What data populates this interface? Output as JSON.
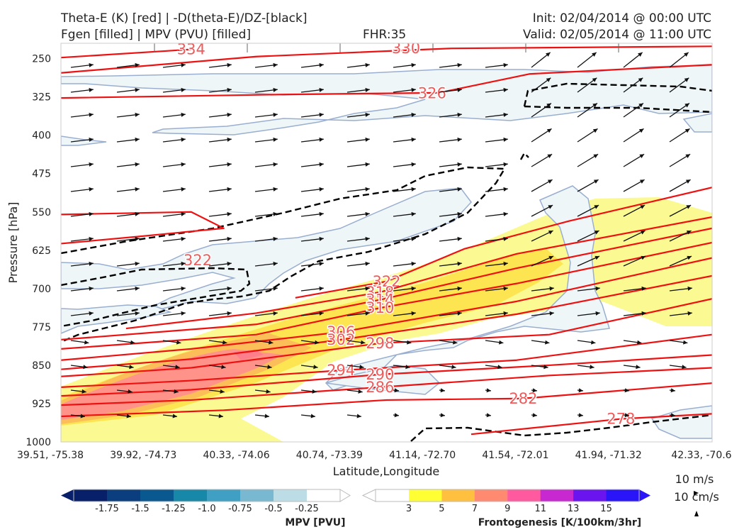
{
  "header": {
    "title_line1": "Theta-E (K) [red] | -D(theta-E)/DZ-[black]",
    "title_line2": "Fgen [filled] | MPV (PVU) [filled]",
    "fhr": "FHR:35",
    "init": "Init: 02/04/2014 @ 00:00 UTC",
    "valid": "Valid: 02/05/2014 @ 11:00 UTC"
  },
  "chart_data": {
    "type": "cross-section",
    "xlabel": "Latitude,Longitude",
    "ylabel": "Pressure [hPa]",
    "x_ticks": [
      "39.51, -75.38",
      "39.92, -74.73",
      "40.33, -74.06",
      "40.74, -73.39",
      "41.14, -72.70",
      "41.54, -72.01",
      "41.94, -71.32",
      "42.33, -70.6"
    ],
    "y_ticks": [
      250,
      325,
      400,
      475,
      550,
      625,
      700,
      775,
      850,
      925,
      1000
    ],
    "ylim": [
      1000,
      220
    ],
    "y_inverted": true,
    "theta_e_color": "#ee1111",
    "theta_e_contours": [
      {
        "value": 334,
        "label": "334",
        "label_at": [
          0.2,
          232
        ],
        "pts": [
          [
            0,
            248
          ],
          [
            0.2,
            232
          ]
        ]
      },
      {
        "value": 330,
        "label": "330",
        "label_at": [
          0.53,
          230
        ],
        "pts": [
          [
            0,
            278
          ],
          [
            0.3,
            246
          ],
          [
            0.6,
            230
          ],
          [
            1,
            226
          ]
        ]
      },
      {
        "value": 326,
        "label": "326",
        "label_at": [
          0.57,
          318
        ],
        "pts": [
          [
            0,
            327
          ],
          [
            0.35,
            320
          ],
          [
            0.58,
            317
          ],
          [
            0.72,
            280
          ],
          [
            1,
            262
          ]
        ]
      },
      {
        "value": 322,
        "label": "322",
        "label_at": [
          0.21,
          645
        ],
        "pts": [
          [
            0,
            555
          ],
          [
            0.2,
            550
          ],
          [
            0.25,
            582
          ],
          [
            0.12,
            598
          ],
          [
            0,
            612
          ]
        ]
      },
      {
        "value": 322,
        "label": "322",
        "label_at": [
          0.5,
          686
        ],
        "pts": [
          [
            0.36,
            718
          ],
          [
            0.5,
            686
          ],
          [
            0.62,
            622
          ],
          [
            0.78,
            568
          ],
          [
            1,
            502
          ]
        ]
      },
      {
        "value": 318,
        "label": "318",
        "label_at": [
          0.49,
          707
        ],
        "pts": [
          [
            0.1,
            778
          ],
          [
            0.3,
            748
          ],
          [
            0.49,
            707
          ],
          [
            0.7,
            632
          ],
          [
            1,
            560
          ]
        ]
      },
      {
        "value": 314,
        "label": "314",
        "label_at": [
          0.49,
          722
        ],
        "pts": [
          [
            0,
            800
          ],
          [
            0.3,
            770
          ],
          [
            0.49,
            722
          ],
          [
            0.7,
            660
          ],
          [
            1,
            582
          ]
        ]
      },
      {
        "value": 310,
        "label": "310",
        "label_at": [
          0.49,
          738
        ],
        "pts": [
          [
            0,
            818
          ],
          [
            0.3,
            790
          ],
          [
            0.49,
            738
          ],
          [
            0.7,
            690
          ],
          [
            1,
            610
          ]
        ]
      },
      {
        "value": 306,
        "label": "306",
        "label_at": [
          0.43,
          785
        ],
        "pts": [
          [
            0,
            840
          ],
          [
            0.2,
            818
          ],
          [
            0.43,
            785
          ],
          [
            0.7,
            725
          ],
          [
            1,
            640
          ]
        ]
      },
      {
        "value": 302,
        "label": "302",
        "label_at": [
          0.43,
          800
        ],
        "pts": [
          [
            0,
            858
          ],
          [
            0.2,
            838
          ],
          [
            0.43,
            800
          ],
          [
            0.7,
            750
          ],
          [
            1,
            675
          ]
        ]
      },
      {
        "value": 298,
        "label": "298",
        "label_at": [
          0.49,
          807
        ],
        "pts": [
          [
            0,
            872
          ],
          [
            0.2,
            855
          ],
          [
            0.49,
            807
          ],
          [
            0.75,
            790
          ],
          [
            1,
            720
          ]
        ]
      },
      {
        "value": 294,
        "label": "294",
        "label_at": [
          0.43,
          860
        ],
        "pts": [
          [
            0,
            893
          ],
          [
            0.2,
            880
          ],
          [
            0.43,
            860
          ],
          [
            0.7,
            840
          ],
          [
            1,
            790
          ]
        ]
      },
      {
        "value": 290,
        "label": "290",
        "label_at": [
          0.49,
          868
        ],
        "pts": [
          [
            0,
            910
          ],
          [
            0.2,
            898
          ],
          [
            0.49,
            868
          ],
          [
            0.75,
            850
          ],
          [
            1,
            830
          ]
        ]
      },
      {
        "value": 286,
        "label": "286",
        "label_at": [
          0.49,
          893
        ],
        "pts": [
          [
            0,
            928
          ],
          [
            0.2,
            918
          ],
          [
            0.49,
            893
          ],
          [
            0.75,
            870
          ],
          [
            1,
            855
          ]
        ]
      },
      {
        "value": 282,
        "label": "282",
        "label_at": [
          0.71,
          915
        ],
        "pts": [
          [
            0,
            950
          ],
          [
            0.25,
            938
          ],
          [
            0.5,
            918
          ],
          [
            0.71,
            915
          ],
          [
            1,
            885
          ]
        ]
      },
      {
        "value": 278,
        "label": "278",
        "label_at": [
          0.86,
          955
        ],
        "pts": [
          [
            0.63,
            985
          ],
          [
            0.86,
            955
          ],
          [
            1,
            945
          ]
        ]
      }
    ],
    "dthetae_dz_color": "#000000",
    "fgen_levels": [
      3,
      5,
      7,
      9,
      11,
      13,
      15
    ],
    "fgen_colors": [
      "#ffff33",
      "#ffc040",
      "#ff8a70",
      "#ff5aa0",
      "#c828d0",
      "#6a14f0",
      "#2a14f8"
    ],
    "mpv_levels": [
      -1.75,
      -1.5,
      -1.25,
      -1.0,
      -0.75,
      -0.5,
      -0.25
    ],
    "mpv_colors": [
      "#08206a",
      "#0a3e7e",
      "#0a5890",
      "#1888a8",
      "#3fa0c4",
      "#78b8d0",
      "#bcdce6",
      "#ffffff"
    ],
    "wind_ref": [
      "10 m/s",
      "10 cm/s"
    ]
  },
  "colorbars": {
    "mpv": {
      "title": "MPV [PVU]",
      "ticks": [
        "-1.75",
        "-1.5",
        "-1.25",
        "-1.0",
        "-0.75",
        "-0.5",
        "-0.25"
      ]
    },
    "fgen": {
      "title": "Frontogenesis [K/100km/3hr]",
      "ticks": [
        "3",
        "5",
        "7",
        "9",
        "11",
        "13",
        "15"
      ]
    }
  }
}
